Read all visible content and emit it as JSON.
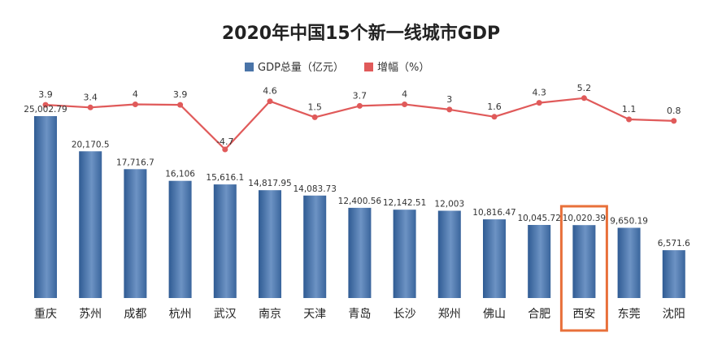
{
  "chart_data": {
    "type": "bar",
    "title": "2020年中国15个新一线城市GDP",
    "categories": [
      "重庆",
      "苏州",
      "成都",
      "杭州",
      "武汉",
      "南京",
      "天津",
      "青岛",
      "长沙",
      "郑州",
      "佛山",
      "合肥",
      "西安",
      "东莞",
      "沈阳"
    ],
    "series": [
      {
        "name": "GDP总量（亿元）",
        "type": "bar",
        "axis": "left",
        "values": [
          25002.79,
          20170.5,
          17716.7,
          16106,
          15616.1,
          14817.95,
          14083.73,
          12400.56,
          12142.51,
          12003,
          10816.47,
          10045.72,
          10020.39,
          9650.19,
          6571.6
        ],
        "labels": [
          "25,002.79",
          "20,170.5",
          "17,716.7",
          "16,106",
          "15,616.1",
          "14,817.95",
          "14,083.73",
          "12,400.56",
          "12,142.51",
          "12,003",
          "10,816.47",
          "10,045.72",
          "10,020.39",
          "9,650.19",
          "6,571.6"
        ],
        "color": "#4a74a8"
      },
      {
        "name": "增幅（%）",
        "type": "line",
        "axis": "right",
        "values": [
          3.9,
          3.4,
          4,
          3.9,
          -4.7,
          4.6,
          1.5,
          3.7,
          4,
          3,
          1.6,
          4.3,
          5.2,
          1.1,
          0.8
        ],
        "labels": [
          "3.9",
          "3.4",
          "4",
          "3.9",
          "-4.7",
          "4.6",
          "1.5",
          "3.7",
          "4",
          "3",
          "1.6",
          "4.3",
          "5.2",
          "1.1",
          "0.8"
        ],
        "color": "#e05a5a"
      }
    ],
    "highlight": {
      "category": "西安",
      "color": "#e8703a"
    },
    "ylim_left": [
      0,
      27000
    ],
    "ylim_right": [
      -7,
      6
    ],
    "grid": false,
    "legend_position": "top-center"
  }
}
